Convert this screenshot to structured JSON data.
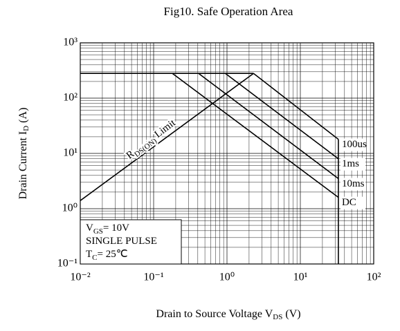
{
  "chart_data": {
    "type": "line",
    "title": "Fig10. Safe Operation Area",
    "x_label": [
      "Drain to Source Voltage V",
      "DS",
      "  (V)"
    ],
    "y_label": [
      "Drain Current I",
      "D",
      " (A)"
    ],
    "log_x": true,
    "log_y": true,
    "grid": true,
    "minor_grid": true,
    "xlim": [
      0.01,
      100
    ],
    "ylim": [
      0.1,
      1000
    ],
    "xticks": [
      {
        "value": 0.01,
        "label": "10⁻²"
      },
      {
        "value": 0.1,
        "label": "10⁻¹"
      },
      {
        "value": 1,
        "label": "10⁰"
      },
      {
        "value": 10,
        "label": "10¹"
      },
      {
        "value": 100,
        "label": "10²"
      }
    ],
    "yticks": [
      {
        "value": 0.1,
        "label": "10⁻¹"
      },
      {
        "value": 1,
        "label": "10⁰"
      },
      {
        "value": 10,
        "label": "10¹"
      },
      {
        "value": 100,
        "label": "10²"
      },
      {
        "value": 1000,
        "label": "10³"
      }
    ],
    "series": [
      {
        "color": "#000000",
        "x": [
          0.01,
          2.3
        ],
        "values": [
          1.4,
          280
        ]
      },
      {
        "color": "#000000",
        "x": [
          0.01,
          2.3
        ],
        "values": [
          280,
          280
        ]
      },
      {
        "name": "100us",
        "color": "#000000",
        "x": [
          2.3,
          33
        ],
        "values": [
          280,
          18
        ]
      },
      {
        "name": "1ms",
        "color": "#000000",
        "x": [
          0.95,
          33
        ],
        "values": [
          280,
          8
        ]
      },
      {
        "name": "10ms",
        "color": "#000000",
        "x": [
          0.41,
          33
        ],
        "values": [
          280,
          3.5
        ]
      },
      {
        "name": "DC",
        "color": "#000000",
        "x": [
          0.18,
          33
        ],
        "values": [
          280,
          1.6
        ]
      },
      {
        "color": "#000000",
        "x": [
          33,
          33
        ],
        "values": [
          18,
          0.1
        ]
      }
    ],
    "limit_label": [
      "R",
      "DS(ON)",
      " Limit"
    ],
    "annotations": [
      [
        "V",
        "GS",
        "= 10V"
      ],
      [
        "SINGLE PULSE"
      ],
      [
        "T",
        "C",
        "= 25℃"
      ]
    ]
  }
}
